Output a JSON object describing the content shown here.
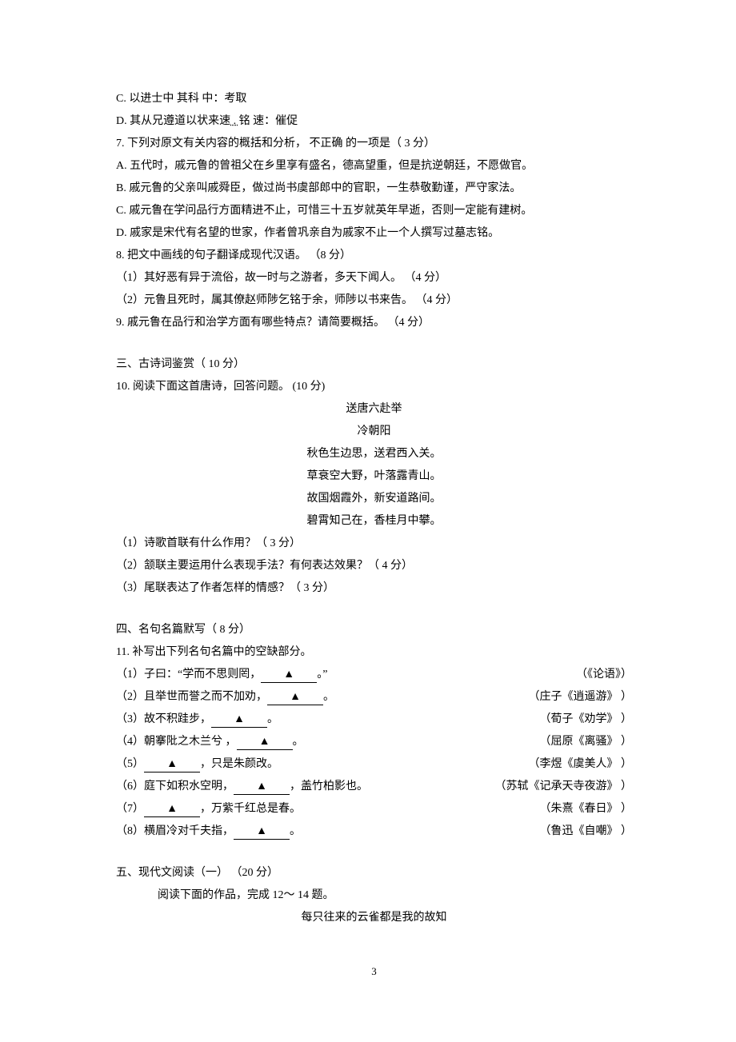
{
  "q6c": {
    "indent": "      C. ",
    "text": "以进士中 其科",
    "gap": "                        ",
    "gloss": "中：考取"
  },
  "q6d": {
    "indent": "      D. ",
    "text": "其从兄遵道以状来速",
    "dot": " . ",
    "tail": "铭",
    "gap": "            ",
    "gloss": "速：催促"
  },
  "q7": {
    "prefix": "7. ",
    "text_a": "下列对原文有关内容的概括和分析，",
    "gap": "      ",
    "text_b": "不正确 的一项是（  3 分）"
  },
  "q7a": {
    "indent": "      A. ",
    "text": "五代时，戚元鲁的曾祖父在乡里享有盛名，德高望重，但是抗逆朝廷，不愿做官。"
  },
  "q7b": {
    "indent": "      B. ",
    "text": "戚元鲁的父亲叫戚舜臣，做过尚书虞部郎中的官职，一生恭敬勤谨，严守家法。"
  },
  "q7c": {
    "indent": "      C. ",
    "text": "戚元鲁在学问品行方面精进不止，可惜三十五岁就英年早逝，否则一定能有建树。"
  },
  "q7d": {
    "indent": "      D. ",
    "text": "戚家是宋代有名望的世家，作者曾巩亲自为戚家不止一个人撰写过墓志铭。"
  },
  "q8": {
    "prefix": "8. ",
    "text": "把文中画线的句子翻译成现代汉语。      （8 分）"
  },
  "q8_1": {
    "indent": "   （1）",
    "text": "其好恶有异于流俗，故一时与之游者，多天下闻人。       （4 分）"
  },
  "q8_2": {
    "indent": "   （2）",
    "text": "元鲁且死时，属其僚赵师陟乞铭于余，师陟以书来告。       （4 分）"
  },
  "q9": {
    "prefix": "9. ",
    "text": "戚元鲁在品行和治学方面有哪些特点？请简要概括。         （4 分）"
  },
  "sec3": "三、古诗词鉴赏（   10 分）",
  "q10": {
    "prefix": "10. ",
    "text": "阅读下面这首唐诗，回答问题。      (10  分)"
  },
  "poem": {
    "title": "送唐六赴举",
    "author": "冷朝阳",
    "l1": "秋色生边思，送君西入关。",
    "l2": "草衰空大野，叶落露青山。",
    "l3": "故国烟霞外，新安道路间。",
    "l4": "碧霄知己在，香桂月中攀。"
  },
  "q10_1": "（1）诗歌首联有什么作用？（     3 分）",
  "q10_2": "（2）颔联主要运用什么表现手法？有何表达效果？（        4 分）",
  "q10_3": "（3）尾联表达了作者怎样的情感？（      3 分）",
  "sec4": "四、名句名篇默写（   8 分）",
  "q11": "11. 补写出下列名句名篇中的空缺部分。",
  "fills": [
    {
      "n": "（1）",
      "left": "子曰：“学而不思则罔，",
      "blank": "▲",
      "after": "。”",
      "src": "（《论语》）"
    },
    {
      "n": "（2）",
      "left": "且举世而誉之而不加劝，",
      "blank": "▲",
      "after": "。",
      "src": "（庄子《逍遥游》 ）"
    },
    {
      "n": "（3）",
      "left": "故不积跬步，",
      "blank": "▲",
      "after": "。",
      "src": "（荀子《劝学》 ）"
    },
    {
      "n": "（4）",
      "left": "朝搴阰之木兰兮  ，",
      "blank": "▲",
      "after": "。",
      "src": "（屈原《离骚》 ）"
    },
    {
      "n": "（5）",
      "left": "",
      "blank": "▲",
      "after": "，只是朱颜改。",
      "src": "（李煜《虞美人》 ）"
    },
    {
      "n": "（6）",
      "left": "庭下如积水空明，",
      "blank": "▲",
      "after": "，盖竹柏影也。",
      "src": "（苏轼《记承天寺夜游》 ）"
    },
    {
      "n": "（7）",
      "left": "",
      "blank": "▲",
      "after": "，万紫千红总是春。",
      "src": "（朱熹《春日》 ）"
    },
    {
      "n": "（8）",
      "left": "横眉冷对千夫指，",
      "blank": "▲",
      "after": "。",
      "src": "（鲁迅《自嘲》 ）"
    }
  ],
  "sec5": "五、现代文阅读（一）   （20 分）",
  "sec5a": "阅读下面的作品，完成    12～ 14 题。",
  "sec5title": "每只往来的云雀都是我的故知",
  "page": "3"
}
